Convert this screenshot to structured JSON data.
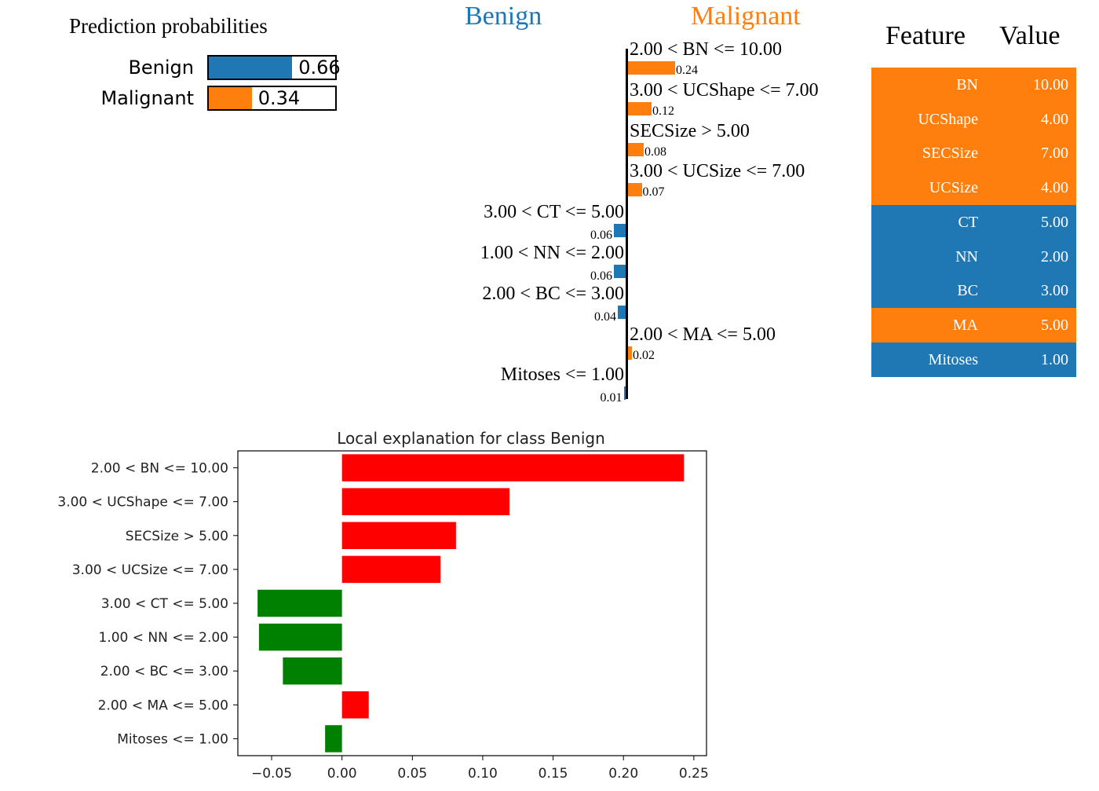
{
  "prediction": {
    "title": "Prediction probabilities",
    "items": [
      {
        "label": "Benign",
        "value": 0.66,
        "value_text": "0.66",
        "color": "#1f77b4"
      },
      {
        "label": "Malignant",
        "value": 0.34,
        "value_text": "0.34",
        "color": "#ff7f0e"
      }
    ]
  },
  "classes": {
    "left": {
      "label": "Benign",
      "color": "#1f77b4"
    },
    "right": {
      "label": "Malignant",
      "color": "#ff7f0e"
    }
  },
  "explanation": [
    {
      "label": "2.00 < BN <= 10.00",
      "weight": 0.24,
      "weight_text": "0.24",
      "side": "right"
    },
    {
      "label": "3.00 < UCShape <= 7.00",
      "weight": 0.12,
      "weight_text": "0.12",
      "side": "right"
    },
    {
      "label": "SECSize > 5.00",
      "weight": 0.08,
      "weight_text": "0.08",
      "side": "right"
    },
    {
      "label": "3.00 < UCSize <= 7.00",
      "weight": 0.07,
      "weight_text": "0.07",
      "side": "right"
    },
    {
      "label": "3.00 < CT <= 5.00",
      "weight": 0.06,
      "weight_text": "0.06",
      "side": "left"
    },
    {
      "label": "1.00 < NN <= 2.00",
      "weight": 0.06,
      "weight_text": "0.06",
      "side": "left"
    },
    {
      "label": "2.00 < BC <= 3.00",
      "weight": 0.04,
      "weight_text": "0.04",
      "side": "left"
    },
    {
      "label": "2.00 < MA <= 5.00",
      "weight": 0.02,
      "weight_text": "0.02",
      "side": "right"
    },
    {
      "label": "Mitoses <= 1.00",
      "weight": 0.01,
      "weight_text": "0.01",
      "side": "left"
    }
  ],
  "feature_table": {
    "headers": {
      "feature": "Feature",
      "value": "Value"
    },
    "rows": [
      {
        "feature": "BN",
        "value": "10.00",
        "class": "right"
      },
      {
        "feature": "UCShape",
        "value": "4.00",
        "class": "right"
      },
      {
        "feature": "SECSize",
        "value": "7.00",
        "class": "right"
      },
      {
        "feature": "UCSize",
        "value": "4.00",
        "class": "right"
      },
      {
        "feature": "CT",
        "value": "5.00",
        "class": "left"
      },
      {
        "feature": "NN",
        "value": "2.00",
        "class": "left"
      },
      {
        "feature": "BC",
        "value": "3.00",
        "class": "left"
      },
      {
        "feature": "MA",
        "value": "5.00",
        "class": "right"
      },
      {
        "feature": "Mitoses",
        "value": "1.00",
        "class": "left"
      }
    ]
  },
  "chart_data": {
    "type": "bar",
    "orientation": "horizontal",
    "title": "Local explanation for class Benign",
    "xlabel": "",
    "ylabel": "",
    "categories": [
      "2.00 < BN <= 10.00",
      "3.00 < UCShape <= 7.00",
      "SECSize > 5.00",
      "3.00 < UCSize <= 7.00",
      "3.00 < CT <= 5.00",
      "1.00 < NN <= 2.00",
      "2.00 < BC <= 3.00",
      "2.00 < MA <= 5.00",
      "Mitoses <= 1.00"
    ],
    "values": [
      0.243,
      0.119,
      0.081,
      0.07,
      -0.06,
      -0.059,
      -0.042,
      0.019,
      -0.012
    ],
    "xlim": [
      -0.074,
      0.259
    ],
    "xticks": [
      -0.05,
      0.0,
      0.05,
      0.1,
      0.15,
      0.2,
      0.25
    ],
    "xtick_labels": [
      "−0.05",
      "0.00",
      "0.05",
      "0.10",
      "0.15",
      "0.20",
      "0.25"
    ],
    "colors": {
      "positive": "#ff0000",
      "negative": "#008000"
    },
    "grid": false
  }
}
